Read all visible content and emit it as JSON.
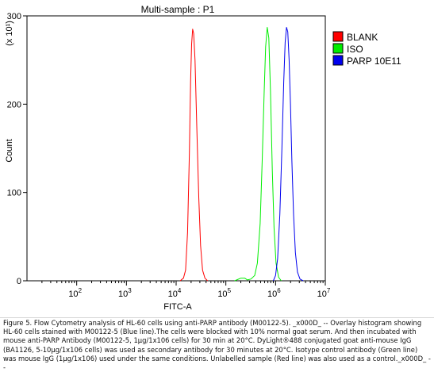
{
  "chart_data": {
    "type": "line",
    "title": "Multi-sample : P1",
    "xlabel": "FITC-A",
    "ylabel": "Count",
    "y_multiplier_label": "(x 10¹)",
    "x_scale": "log",
    "xlim": [
      10,
      10000000
    ],
    "ylim": [
      0,
      300
    ],
    "x_ticks": [
      100,
      1000,
      10000,
      100000,
      1000000,
      10000000
    ],
    "x_tick_labels": [
      {
        "base": "10",
        "exp": "2"
      },
      {
        "base": "10",
        "exp": "3"
      },
      {
        "base": "10",
        "exp": "4"
      },
      {
        "base": "10",
        "exp": "5"
      },
      {
        "base": "10",
        "exp": "6"
      },
      {
        "base": "10",
        "exp": "7"
      }
    ],
    "y_ticks": [
      0,
      100,
      200,
      300
    ],
    "y_tick_labels": [
      "0",
      "100",
      "200",
      "300"
    ],
    "grid": false,
    "legend_position": "right",
    "series": [
      {
        "name": "BLANK",
        "color": "#ff0000",
        "points": [
          [
            12000,
            0
          ],
          [
            14000,
            3
          ],
          [
            15500,
            12
          ],
          [
            17000,
            55
          ],
          [
            18500,
            145
          ],
          [
            19500,
            225
          ],
          [
            20500,
            268
          ],
          [
            21500,
            285
          ],
          [
            22500,
            280
          ],
          [
            24000,
            250
          ],
          [
            26000,
            175
          ],
          [
            28500,
            95
          ],
          [
            31000,
            40
          ],
          [
            34000,
            12
          ],
          [
            38000,
            3
          ],
          [
            43000,
            0
          ]
        ]
      },
      {
        "name": "ISO",
        "color": "#00ee00",
        "points": [
          [
            150000,
            0
          ],
          [
            200000,
            3
          ],
          [
            240000,
            3
          ],
          [
            270000,
            1
          ],
          [
            320000,
            2
          ],
          [
            380000,
            6
          ],
          [
            430000,
            20
          ],
          [
            490000,
            65
          ],
          [
            540000,
            140
          ],
          [
            590000,
            215
          ],
          [
            630000,
            265
          ],
          [
            680000,
            287
          ],
          [
            730000,
            275
          ],
          [
            790000,
            215
          ],
          [
            860000,
            125
          ],
          [
            930000,
            60
          ],
          [
            1020000,
            20
          ],
          [
            1150000,
            4
          ],
          [
            1300000,
            0
          ]
        ]
      },
      {
        "name": "PARP 10E11",
        "color": "#0000ee",
        "points": [
          [
            900000,
            0
          ],
          [
            1000000,
            6
          ],
          [
            1100000,
            25
          ],
          [
            1220000,
            75
          ],
          [
            1340000,
            150
          ],
          [
            1460000,
            225
          ],
          [
            1560000,
            270
          ],
          [
            1660000,
            287
          ],
          [
            1760000,
            282
          ],
          [
            1870000,
            250
          ],
          [
            1990000,
            200
          ],
          [
            2130000,
            135
          ],
          [
            2300000,
            75
          ],
          [
            2500000,
            32
          ],
          [
            2750000,
            10
          ],
          [
            3100000,
            2
          ],
          [
            3600000,
            0
          ]
        ]
      }
    ]
  },
  "caption": "Figure 5. Flow Cytometry analysis of HL-60 cells using anti-PARP antibody (M00122-5). _x000D_ -- Overlay histogram showing HL-60 cells stained with M00122-5 (Blue line).The cells were blocked with 10% normal goat serum. And then incubated with mouse anti-PARP Antibody (M00122-5, 1μg/1x106 cells) for 30 min at 20°C. DyLight®488 conjugated goat anti-mouse IgG (BA1126, 5-10μg/1x106 cells) was used as secondary antibody for 30 minutes at 20°C. Isotype control antibody (Green line) was mouse IgG (1μg/1x106) used under the same conditions. Unlabelled sample (Red line) was also used as a control._x000D_ --"
}
